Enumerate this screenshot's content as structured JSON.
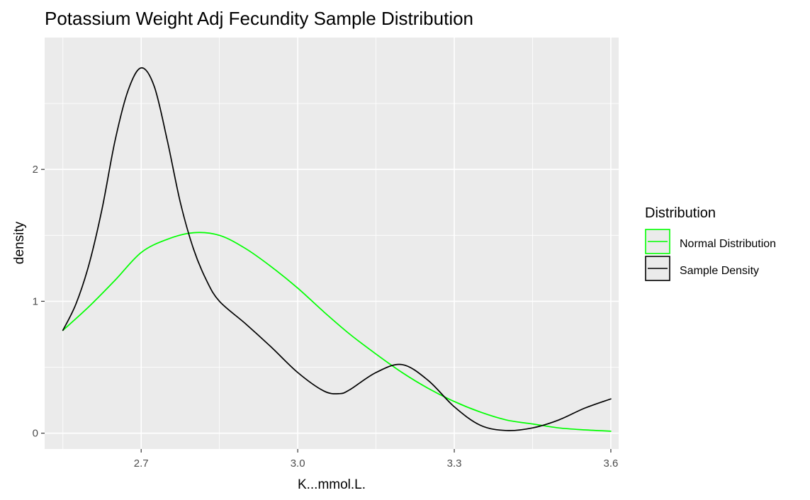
{
  "chart_data": {
    "type": "line",
    "title": "Potassium Weight Adj Fecundity Sample Distribution",
    "xlabel": "K...mmol.L.",
    "ylabel": "density",
    "xlim": [
      2.515,
      3.615
    ],
    "ylim": [
      -0.12,
      3.0
    ],
    "x_ticks": [
      2.7,
      3.0,
      3.3,
      3.6
    ],
    "x_tick_labels": [
      "2.7",
      "3.0",
      "3.3",
      "3.6"
    ],
    "x_minor_ticks": [
      2.55,
      2.85,
      3.15,
      3.45
    ],
    "y_ticks": [
      0,
      1,
      2
    ],
    "y_tick_labels": [
      "0",
      "1",
      "2"
    ],
    "y_minor_ticks": [
      0.5,
      1.5,
      2.5
    ],
    "grid": true,
    "panel_background": "#ebebeb",
    "grid_color": "#ffffff",
    "legend": {
      "title": "Distribution",
      "position": "right",
      "entries": [
        "Normal Distribution",
        "Sample Density"
      ]
    },
    "series": [
      {
        "name": "Normal Distribution",
        "color": "#00ff00",
        "x": [
          2.55,
          2.6,
          2.65,
          2.7,
          2.75,
          2.8,
          2.85,
          2.9,
          2.95,
          3.0,
          3.05,
          3.1,
          3.15,
          3.2,
          3.25,
          3.3,
          3.35,
          3.4,
          3.45,
          3.5,
          3.55,
          3.6
        ],
        "y": [
          0.78,
          0.96,
          1.16,
          1.37,
          1.47,
          1.52,
          1.5,
          1.4,
          1.26,
          1.1,
          0.92,
          0.75,
          0.6,
          0.46,
          0.34,
          0.24,
          0.16,
          0.1,
          0.07,
          0.04,
          0.025,
          0.015
        ]
      },
      {
        "name": "Sample Density",
        "color": "#000000",
        "x": [
          2.55,
          2.575,
          2.6,
          2.625,
          2.65,
          2.675,
          2.7,
          2.725,
          2.75,
          2.775,
          2.8,
          2.825,
          2.85,
          2.9,
          2.95,
          3.0,
          3.05,
          3.08,
          3.1,
          3.15,
          3.2,
          3.25,
          3.3,
          3.35,
          3.4,
          3.45,
          3.5,
          3.55,
          3.6
        ],
        "y": [
          0.78,
          0.98,
          1.28,
          1.7,
          2.22,
          2.6,
          2.77,
          2.63,
          2.22,
          1.75,
          1.4,
          1.16,
          1.0,
          0.83,
          0.65,
          0.46,
          0.32,
          0.3,
          0.33,
          0.46,
          0.52,
          0.4,
          0.2,
          0.06,
          0.02,
          0.04,
          0.1,
          0.19,
          0.26
        ]
      }
    ]
  }
}
